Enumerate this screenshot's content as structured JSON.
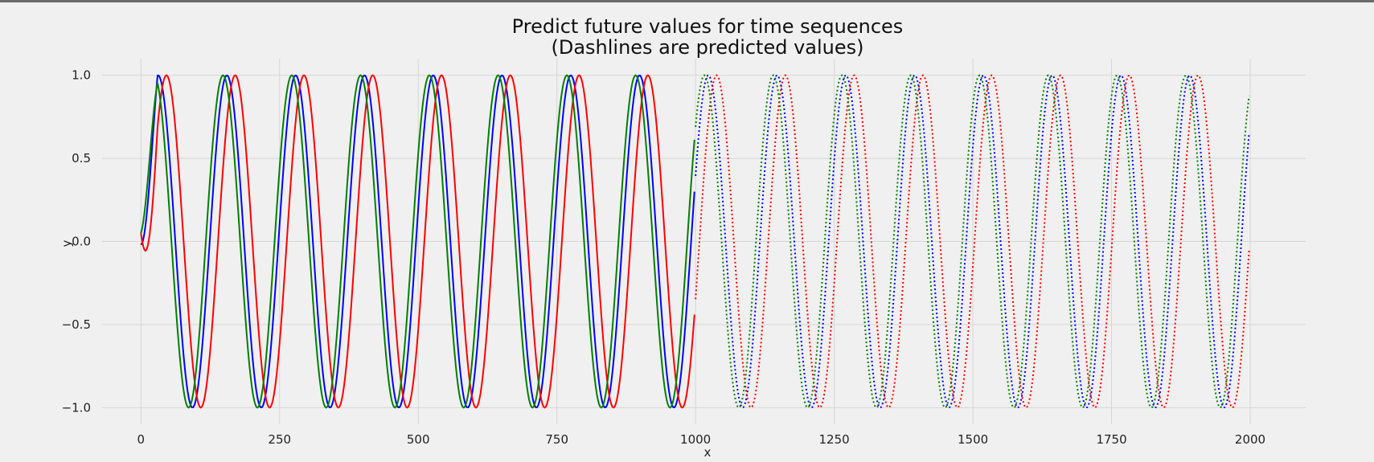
{
  "chart_data": {
    "type": "line",
    "title": [
      "Predict future values for time sequences",
      "(Dashlines are predicted values)"
    ],
    "xlabel": "x",
    "ylabel": "y",
    "xlim": [
      -70,
      2100
    ],
    "ylim": [
      -1.1,
      1.1
    ],
    "xticks": [
      0,
      250,
      500,
      750,
      1000,
      1250,
      1500,
      1750,
      2000
    ],
    "xtick_labels": [
      "0",
      "250",
      "500",
      "750",
      "1000",
      "1250",
      "1500",
      "1750",
      "2000"
    ],
    "yticks": [
      1.0,
      0.5,
      0.0,
      -0.5,
      -1.0
    ],
    "ytick_labels": [
      "1.0",
      "0.5",
      "0.0",
      "−0.5",
      "−1.0"
    ],
    "grid": true,
    "background": "#f0f0f0",
    "observed_range": [
      0,
      999
    ],
    "predicted_range": [
      1000,
      1999
    ],
    "period": 124,
    "series": [
      {
        "color": "#0000ff",
        "phase_x": 0,
        "observed": "solid",
        "predicted": "dotted"
      },
      {
        "color": "#ff0000",
        "phase_x": 15,
        "observed": "solid",
        "predicted": "dotted"
      },
      {
        "color": "#008000",
        "phase_x": -7,
        "observed": "solid",
        "predicted": "dotted"
      }
    ]
  }
}
